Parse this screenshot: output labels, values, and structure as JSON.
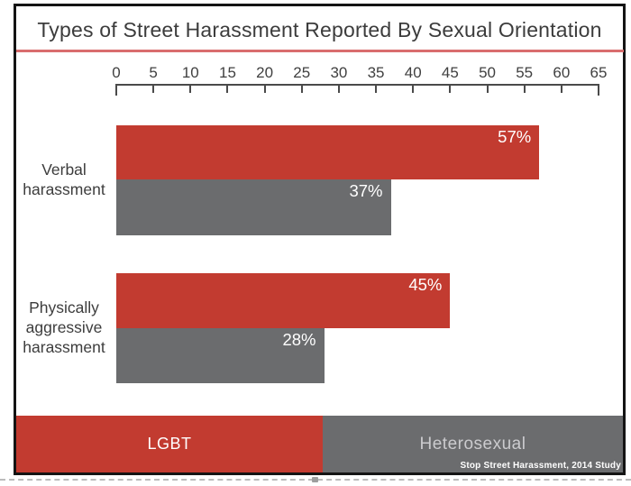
{
  "title": "Types of Street Harassment Reported By Sexual Orientation",
  "source": "Stop Street Harassment, 2014 Study",
  "colors": {
    "lgbt_red": "#c23b30",
    "heterosexual_gray": "#6b6c6e",
    "title_text": "#3c3c3c",
    "title_underline": "#d96d6e",
    "axis": "#4a4a4a",
    "value_label_text": "#ffffff"
  },
  "legend": [
    {
      "label": "LGBT",
      "color": "#c23b30"
    },
    {
      "label": "Heterosexual",
      "color": "#6b6c6e"
    }
  ],
  "chart_data": {
    "type": "bar",
    "orientation": "horizontal",
    "title": "Types of Street Harassment Reported By Sexual Orientation",
    "categories": [
      "Verbal harassment",
      "Physically aggressive harassment"
    ],
    "series": [
      {
        "name": "LGBT",
        "color": "#c23b30",
        "values": [
          57,
          45
        ]
      },
      {
        "name": "Heterosexual",
        "color": "#6b6c6e",
        "values": [
          37,
          28
        ]
      }
    ],
    "value_suffix": "%",
    "xlim": [
      0,
      65
    ],
    "tick_step": 5,
    "ticks": [
      0,
      5,
      10,
      15,
      20,
      25,
      30,
      35,
      40,
      45,
      50,
      55,
      60,
      65
    ],
    "grid": false,
    "legend_position": "bottom",
    "annotations": [
      "57%",
      "37%",
      "45%",
      "28%"
    ]
  }
}
